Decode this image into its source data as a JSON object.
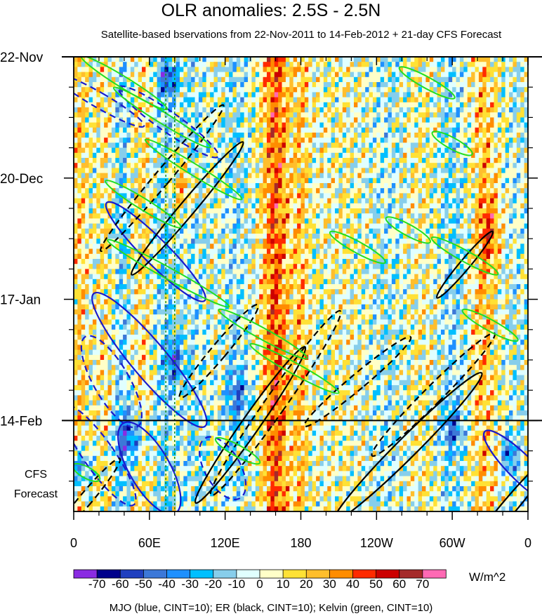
{
  "chart_data": {
    "type": "heatmap",
    "title": "OLR anomalies: 2.5S - 2.5N",
    "subtitle": "Satellite-based bservations from 22-Nov-2011 to 14-Feb-2012 + 21-day CFS Forecast",
    "x_ticks": [
      "0",
      "60E",
      "120E",
      "180",
      "120W",
      "60W",
      "0"
    ],
    "x_tick_values": [
      0,
      60,
      120,
      180,
      240,
      300,
      360
    ],
    "xlim": [
      0,
      360
    ],
    "y_ticks": [
      "22-Nov",
      "20-Dec",
      "17-Jan",
      "14-Feb"
    ],
    "y_tick_days": [
      0,
      28,
      56,
      84
    ],
    "ylim_days": [
      0,
      105
    ],
    "forecast_start_day": 84,
    "forecast_label_line1": "CFS",
    "forecast_label_line2": "Forecast",
    "colorbar": {
      "labels": [
        "-70",
        "-60",
        "-50",
        "-40",
        "-30",
        "-20",
        "-10",
        "0",
        "10",
        "20",
        "30",
        "40",
        "50",
        "60",
        "70"
      ],
      "colors": [
        "#8a2be2",
        "#00008b",
        "#1f3fbf",
        "#3c78d8",
        "#1e90ff",
        "#00bfff",
        "#87ceeb",
        "#e0ffff",
        "#ffffc8",
        "#ffe135",
        "#ffbe2c",
        "#ff8c00",
        "#ff2a00",
        "#cc0000",
        "#a52a2a",
        "#ff69b4"
      ],
      "units": "W/m^2"
    },
    "footer": "MJO (blue, CINT=10); ER (black, CINT=10); Kelvin (green, CINT=10)",
    "series_colors": {
      "MJO": "#1a1acc",
      "ER": "#000000",
      "Kelvin": "#22dd22"
    },
    "bands": [
      {
        "lon": 5,
        "amp": 18,
        "width": 6
      },
      {
        "lon": 25,
        "amp": 10,
        "width": 8
      },
      {
        "lon": 38,
        "amp": -18,
        "width": 6
      },
      {
        "lon": 55,
        "amp": 12,
        "width": 8
      },
      {
        "lon": 72,
        "amp": -15,
        "width": 9
      },
      {
        "lon": 95,
        "amp": -10,
        "width": 10
      },
      {
        "lon": 128,
        "amp": -12,
        "width": 9
      },
      {
        "lon": 160,
        "amp": 42,
        "width": 10
      },
      {
        "lon": 180,
        "amp": 20,
        "width": 6
      },
      {
        "lon": 210,
        "amp": 4,
        "width": 20
      },
      {
        "lon": 248,
        "amp": -8,
        "width": 14
      },
      {
        "lon": 275,
        "amp": 6,
        "width": 12
      },
      {
        "lon": 300,
        "amp": -14,
        "width": 10
      },
      {
        "lon": 325,
        "amp": 20,
        "width": 10
      },
      {
        "lon": 350,
        "amp": -6,
        "width": 8
      }
    ],
    "events": [
      {
        "lon": 75,
        "day": 5,
        "amp": -40,
        "rl": 8,
        "rd": 4
      },
      {
        "lon": 85,
        "day": 30,
        "amp": 30,
        "rl": 10,
        "rd": 6
      },
      {
        "lon": 80,
        "day": 70,
        "amp": -45,
        "rl": 6,
        "rd": 5
      },
      {
        "lon": 130,
        "day": 78,
        "amp": -30,
        "rl": 10,
        "rd": 6
      },
      {
        "lon": 45,
        "day": 88,
        "amp": -40,
        "rl": 12,
        "rd": 6
      },
      {
        "lon": 5,
        "day": 95,
        "amp": -45,
        "rl": 8,
        "rd": 5
      },
      {
        "lon": 300,
        "day": 86,
        "amp": -35,
        "rl": 8,
        "rd": 4
      },
      {
        "lon": 345,
        "day": 92,
        "amp": -40,
        "rl": 6,
        "rd": 4
      },
      {
        "lon": 330,
        "day": 40,
        "amp": 30,
        "rl": 8,
        "rd": 8
      }
    ],
    "contours": [
      {
        "series": "MJO",
        "lon": 75,
        "day": 15,
        "rlon": 8,
        "rday": 14,
        "rot": -55,
        "dash": true
      },
      {
        "series": "MJO",
        "lon": 65,
        "day": 45,
        "rlon": 10,
        "rday": 16,
        "rot": -45,
        "dash": false
      },
      {
        "series": "MJO",
        "lon": 60,
        "day": 70,
        "rlon": 14,
        "rday": 20,
        "rot": -40,
        "dash": false
      },
      {
        "series": "MJO",
        "lon": 30,
        "day": 75,
        "rlon": 14,
        "rday": 12,
        "rot": -30,
        "dash": true
      },
      {
        "series": "MJO",
        "lon": 20,
        "day": 92,
        "rlon": 12,
        "rday": 14,
        "rot": -35,
        "dash": true
      },
      {
        "series": "MJO",
        "lon": 60,
        "day": 95,
        "rlon": 16,
        "rday": 12,
        "rot": -30,
        "dash": false
      },
      {
        "series": "MJO",
        "lon": 118,
        "day": 95,
        "rlon": 14,
        "rday": 8,
        "rot": -30,
        "dash": true
      },
      {
        "series": "MJO",
        "lon": 355,
        "day": 95,
        "rlon": 10,
        "rday": 12,
        "rot": -45,
        "dash": false
      },
      {
        "series": "MJO",
        "lon": 20,
        "day": 10,
        "rlon": 6,
        "rday": 12,
        "rot": -60,
        "dash": true
      },
      {
        "series": "ER",
        "lon": 70,
        "day": 28,
        "rlon": 6,
        "rday": 22,
        "rot": 40,
        "dash": true
      },
      {
        "series": "ER",
        "lon": 90,
        "day": 35,
        "rlon": 6,
        "rday": 20,
        "rot": 40,
        "dash": false
      },
      {
        "series": "ER",
        "lon": 140,
        "day": 85,
        "rlon": 7,
        "rday": 22,
        "rot": 35,
        "dash": false
      },
      {
        "series": "ER",
        "lon": 160,
        "day": 80,
        "rlon": 8,
        "rday": 26,
        "rot": 35,
        "dash": true
      },
      {
        "series": "ER",
        "lon": 115,
        "day": 68,
        "rlon": 6,
        "rday": 14,
        "rot": 40,
        "dash": true
      },
      {
        "series": "ER",
        "lon": 265,
        "day": 90,
        "rlon": 8,
        "rday": 24,
        "rot": 45,
        "dash": false
      },
      {
        "series": "ER",
        "lon": 285,
        "day": 78,
        "rlon": 7,
        "rday": 20,
        "rot": 45,
        "dash": true
      },
      {
        "series": "ER",
        "lon": 225,
        "day": 75,
        "rlon": 6,
        "rday": 16,
        "rot": 50,
        "dash": true
      },
      {
        "series": "ER",
        "lon": 310,
        "day": 48,
        "rlon": 4,
        "rday": 10,
        "rot": 40,
        "dash": false
      },
      {
        "series": "ER",
        "lon": 345,
        "day": 104,
        "rlon": 6,
        "rday": 16,
        "rot": 40,
        "dash": false
      },
      {
        "series": "ER",
        "lon": 10,
        "day": 102,
        "rlon": 5,
        "rday": 12,
        "rot": 40,
        "dash": true
      },
      {
        "series": "Kelvin",
        "lon": 40,
        "day": 6,
        "rlon": 40,
        "rday": 1.3,
        "rot": 0,
        "slope": 0.18,
        "dash": false
      },
      {
        "series": "Kelvin",
        "lon": 70,
        "day": 14,
        "rlon": 45,
        "rday": 1.3,
        "rot": 0,
        "slope": 0.18,
        "dash": false
      },
      {
        "series": "Kelvin",
        "lon": 95,
        "day": 26,
        "rlon": 45,
        "rday": 1.3,
        "rot": 0,
        "slope": 0.18,
        "dash": false
      },
      {
        "series": "Kelvin",
        "lon": 55,
        "day": 34,
        "rlon": 35,
        "rday": 1.3,
        "rot": 0,
        "slope": 0.18,
        "dash": false
      },
      {
        "series": "Kelvin",
        "lon": 75,
        "day": 50,
        "rlon": 55,
        "rday": 1.3,
        "rot": 0,
        "slope": 0.16,
        "dash": false
      },
      {
        "series": "Kelvin",
        "lon": 150,
        "day": 64,
        "rlon": 40,
        "rday": 1.3,
        "rot": 0,
        "slope": 0.16,
        "dash": false
      },
      {
        "series": "Kelvin",
        "lon": 175,
        "day": 72,
        "rlon": 40,
        "rday": 1.3,
        "rot": 0,
        "slope": 0.16,
        "dash": false
      },
      {
        "series": "Kelvin",
        "lon": 225,
        "day": 44,
        "rlon": 25,
        "rday": 1.3,
        "rot": 0,
        "slope": 0.16,
        "dash": false
      },
      {
        "series": "Kelvin",
        "lon": 265,
        "day": 40,
        "rlon": 20,
        "rday": 1.3,
        "rot": 0,
        "slope": 0.16,
        "dash": false
      },
      {
        "series": "Kelvin",
        "lon": 310,
        "day": 46,
        "rlon": 30,
        "rday": 1.3,
        "rot": 0,
        "slope": 0.16,
        "dash": false
      },
      {
        "series": "Kelvin",
        "lon": 330,
        "day": 62,
        "rlon": 25,
        "rday": 1.3,
        "rot": 0,
        "slope": 0.16,
        "dash": false
      },
      {
        "series": "Kelvin",
        "lon": 300,
        "day": 20,
        "rlon": 18,
        "rday": 1.3,
        "rot": 0,
        "slope": 0.16,
        "dash": false
      },
      {
        "series": "Kelvin",
        "lon": 280,
        "day": 6,
        "rlon": 25,
        "rday": 1.3,
        "rot": 0,
        "slope": 0.16,
        "dash": false
      },
      {
        "series": "Kelvin",
        "lon": 10,
        "day": 96,
        "rlon": 12,
        "rday": 1.3,
        "rot": 0,
        "slope": 0.16,
        "dash": false
      },
      {
        "series": "Kelvin",
        "lon": 130,
        "day": 91,
        "rlon": 20,
        "rday": 1.3,
        "rot": 0,
        "slope": 0.16,
        "dash": false
      }
    ],
    "ref_lines_lon": [
      73,
      80
    ]
  }
}
